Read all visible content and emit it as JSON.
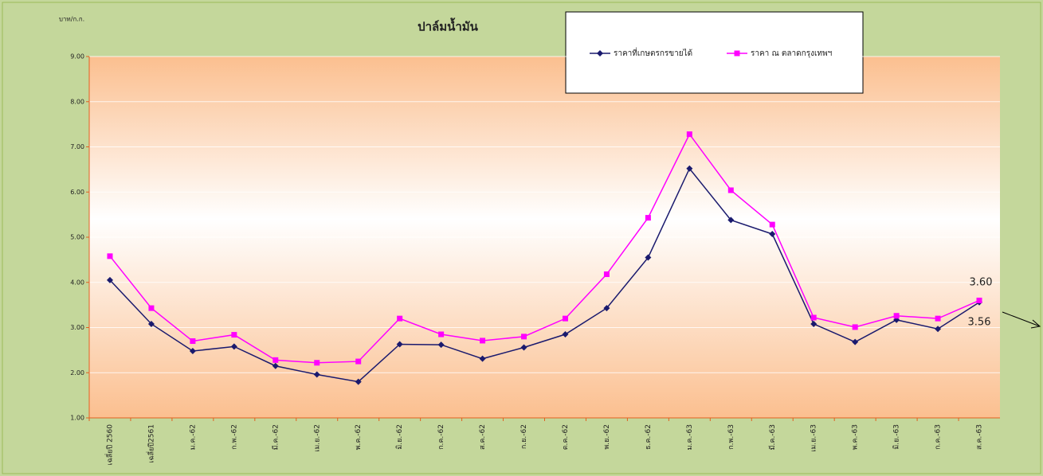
{
  "chart_data": {
    "type": "line",
    "title": "ปาล์มน้ำมัน",
    "y_label": "บาท/ก.ก.",
    "categories": [
      "เฉลี่ยปี 2560",
      "เฉลี่ยปี2561",
      "ม.ค.-62",
      "ก.พ.-62",
      "มี.ค.-62",
      "เม.ย.-62",
      "พ.ค.-62",
      "มิ.ย.-62",
      "ก.ค.-62",
      "ส.ค.-62",
      "ก.ย.-62",
      "ต.ค.-62",
      "พ.ย.-62",
      "ธ.ค.-62",
      "ม.ค.-63",
      "ก.พ.-63",
      "มี.ค.-63",
      "เม.ย.-63",
      "พ.ค.-63",
      "มิ.ย.-63",
      "ก.ค.-63",
      "ส.ค.-63"
    ],
    "series": [
      {
        "name": "ราคาที่เกษตรกรขายได้",
        "color": "#1a1a6e",
        "marker": "diamond",
        "values": [
          4.05,
          3.08,
          2.48,
          2.58,
          2.15,
          1.96,
          1.8,
          2.63,
          2.62,
          2.31,
          2.56,
          2.85,
          3.43,
          4.55,
          6.52,
          5.38,
          5.07,
          3.08,
          2.68,
          3.17,
          2.97,
          3.56
        ]
      },
      {
        "name": "ราคา ณ ตลาดกรุงเทพฯ",
        "color": "#ff00ff",
        "marker": "square",
        "values": [
          4.58,
          3.43,
          2.7,
          2.84,
          2.28,
          2.22,
          2.25,
          3.2,
          2.85,
          2.71,
          2.8,
          3.2,
          4.18,
          5.43,
          7.28,
          6.04,
          5.28,
          3.22,
          3.01,
          3.26,
          3.2,
          3.6
        ]
      }
    ],
    "ylim": [
      1,
      9
    ],
    "yticks": [
      {
        "value": 1,
        "label": "1.00"
      },
      {
        "value": 2,
        "label": "2.00"
      },
      {
        "value": 3,
        "label": "3.00"
      },
      {
        "value": 4,
        "label": "4.00"
      },
      {
        "value": 5,
        "label": "5.00"
      },
      {
        "value": 6,
        "label": "6.00"
      },
      {
        "value": 7,
        "label": "7.00"
      },
      {
        "value": 8,
        "label": "8.00"
      },
      {
        "value": 9,
        "label": "9.00"
      }
    ],
    "grid": true,
    "annotations": [
      "3.60",
      "3.56"
    ]
  }
}
